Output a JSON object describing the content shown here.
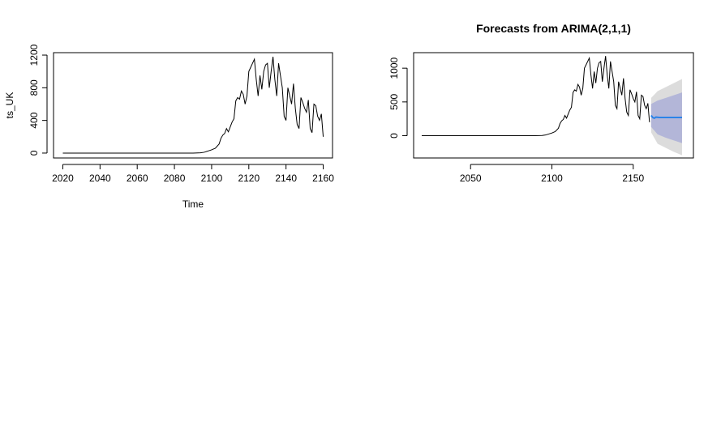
{
  "chart_data": [
    {
      "type": "line",
      "title": "",
      "xlabel": "Time",
      "ylabel": "ts_UK",
      "xlim": [
        2015,
        2165
      ],
      "ylim": [
        -60,
        1230
      ],
      "xticks": [
        2020,
        2040,
        2060,
        2080,
        2100,
        2120,
        2140,
        2160
      ],
      "yticks": [
        0,
        400,
        800,
        1200
      ],
      "ytick_labels": [
        "0",
        "400",
        "800",
        "1200"
      ],
      "grid": false,
      "series": [
        {
          "color": "#000000",
          "x": [
            2020,
            2030,
            2040,
            2050,
            2060,
            2070,
            2080,
            2090,
            2094,
            2096,
            2098,
            2100,
            2102,
            2104,
            2105,
            2106,
            2107,
            2108,
            2109,
            2110,
            2111,
            2112,
            2113,
            2114,
            2115,
            2116,
            2117,
            2118,
            2119,
            2120,
            2121,
            2122,
            2123,
            2124,
            2125,
            2126,
            2127,
            2128,
            2129,
            2130,
            2131,
            2132,
            2133,
            2134,
            2135,
            2136,
            2137,
            2138,
            2139,
            2140,
            2141,
            2142,
            2143,
            2144,
            2145,
            2146,
            2147,
            2148,
            2149,
            2150,
            2151,
            2152,
            2153,
            2154,
            2155,
            2156,
            2157,
            2158,
            2159,
            2160
          ],
          "y": [
            0,
            0,
            0,
            0,
            0,
            0,
            0,
            0,
            3,
            10,
            25,
            40,
            60,
            110,
            180,
            220,
            240,
            300,
            260,
            320,
            380,
            420,
            640,
            680,
            660,
            760,
            720,
            600,
            700,
            1000,
            1050,
            1100,
            1150,
            900,
            700,
            950,
            780,
            1000,
            1080,
            1100,
            800,
            1000,
            1180,
            900,
            700,
            1100,
            950,
            800,
            450,
            400,
            800,
            700,
            600,
            850,
            550,
            350,
            300,
            680,
            620,
            550,
            500,
            650,
            300,
            250,
            600,
            580,
            450,
            400,
            480,
            200
          ]
        }
      ]
    },
    {
      "type": "line",
      "title": "Forecasts from ARIMA(2,1,1)",
      "xlabel": "",
      "ylabel": "",
      "xlim": [
        2015,
        2187
      ],
      "ylim": [
        -330,
        1230
      ],
      "xticks": [
        2050,
        2100,
        2150
      ],
      "yticks": [
        0,
        500,
        1000
      ],
      "ytick_labels": [
        "0",
        "500",
        "1000"
      ],
      "grid": false,
      "series": [
        {
          "color": "#000000",
          "x": [
            2020,
            2030,
            2040,
            2050,
            2060,
            2070,
            2080,
            2090,
            2094,
            2096,
            2098,
            2100,
            2102,
            2104,
            2105,
            2106,
            2107,
            2108,
            2109,
            2110,
            2111,
            2112,
            2113,
            2114,
            2115,
            2116,
            2117,
            2118,
            2119,
            2120,
            2121,
            2122,
            2123,
            2124,
            2125,
            2126,
            2127,
            2128,
            2129,
            2130,
            2131,
            2132,
            2133,
            2134,
            2135,
            2136,
            2137,
            2138,
            2139,
            2140,
            2141,
            2142,
            2143,
            2144,
            2145,
            2146,
            2147,
            2148,
            2149,
            2150,
            2151,
            2152,
            2153,
            2154,
            2155,
            2156,
            2157,
            2158,
            2159,
            2160
          ],
          "y": [
            0,
            0,
            0,
            0,
            0,
            0,
            0,
            0,
            3,
            10,
            25,
            40,
            60,
            110,
            180,
            220,
            240,
            300,
            260,
            320,
            380,
            420,
            640,
            680,
            660,
            760,
            720,
            600,
            700,
            1000,
            1050,
            1100,
            1150,
            900,
            700,
            950,
            780,
            1000,
            1080,
            1100,
            800,
            1000,
            1180,
            900,
            700,
            1100,
            950,
            800,
            450,
            400,
            800,
            700,
            600,
            850,
            550,
            350,
            300,
            680,
            620,
            550,
            500,
            650,
            300,
            250,
            600,
            580,
            450,
            400,
            480,
            200
          ]
        },
        {
          "color": "#2b83e8",
          "x": [
            2161,
            2162,
            2163,
            2164,
            2166,
            2170,
            2175,
            2180
          ],
          "y": [
            300,
            270,
            260,
            275,
            270,
            270,
            270,
            270
          ]
        }
      ],
      "bands": [
        {
          "color": "#dcdcdc",
          "x": [
            2161,
            2165,
            2170,
            2175,
            2180
          ],
          "lower": [
            50,
            -120,
            -180,
            -240,
            -290
          ],
          "upper": [
            560,
            660,
            720,
            780,
            840
          ]
        },
        {
          "color": "#b3b6d8",
          "x": [
            2161,
            2165,
            2170,
            2175,
            2180
          ],
          "lower": [
            130,
            20,
            -30,
            -70,
            -110
          ],
          "upper": [
            470,
            520,
            560,
            600,
            640
          ]
        }
      ]
    }
  ]
}
